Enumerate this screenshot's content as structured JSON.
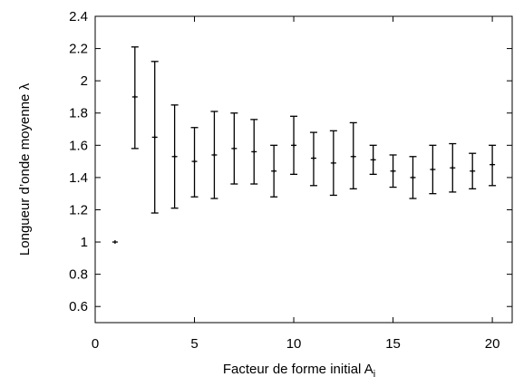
{
  "chart_data": {
    "type": "scatter",
    "xlabel": "Facteur de forme initial A",
    "xlabel_subscript": "i",
    "ylabel": "Longueur d’onde moyenne λ",
    "xlim": [
      0,
      21
    ],
    "ylim": [
      0.5,
      2.4
    ],
    "xticks": [
      0,
      5,
      10,
      15,
      20
    ],
    "xtick_labels": [
      "0",
      "5",
      "10",
      "15",
      "20"
    ],
    "yticks": [
      0.6,
      0.8,
      1,
      1.2,
      1.4,
      1.6,
      1.8,
      2,
      2.2,
      2.4
    ],
    "ytick_labels": [
      "0.6",
      "0.8",
      "1",
      "1.2",
      "1.4",
      "1.6",
      "1.8",
      "2",
      "2.2",
      "2.4"
    ],
    "grid": false,
    "series": [
      {
        "marker": "plus",
        "error_bars": true,
        "points": [
          {
            "x": 1,
            "y": 1.0,
            "ymin": 1.0,
            "ymax": 1.0
          },
          {
            "x": 2,
            "y": 1.9,
            "ymin": 1.58,
            "ymax": 2.21
          },
          {
            "x": 3,
            "y": 1.65,
            "ymin": 1.18,
            "ymax": 2.12
          },
          {
            "x": 4,
            "y": 1.53,
            "ymin": 1.21,
            "ymax": 1.85
          },
          {
            "x": 5,
            "y": 1.5,
            "ymin": 1.28,
            "ymax": 1.71
          },
          {
            "x": 6,
            "y": 1.54,
            "ymin": 1.27,
            "ymax": 1.81
          },
          {
            "x": 7,
            "y": 1.58,
            "ymin": 1.36,
            "ymax": 1.8
          },
          {
            "x": 8,
            "y": 1.56,
            "ymin": 1.36,
            "ymax": 1.76
          },
          {
            "x": 9,
            "y": 1.44,
            "ymin": 1.28,
            "ymax": 1.6
          },
          {
            "x": 10,
            "y": 1.6,
            "ymin": 1.42,
            "ymax": 1.78
          },
          {
            "x": 11,
            "y": 1.52,
            "ymin": 1.35,
            "ymax": 1.68
          },
          {
            "x": 12,
            "y": 1.49,
            "ymin": 1.29,
            "ymax": 1.69
          },
          {
            "x": 13,
            "y": 1.53,
            "ymin": 1.33,
            "ymax": 1.74
          },
          {
            "x": 14,
            "y": 1.51,
            "ymin": 1.42,
            "ymax": 1.6
          },
          {
            "x": 15,
            "y": 1.44,
            "ymin": 1.34,
            "ymax": 1.54
          },
          {
            "x": 16,
            "y": 1.4,
            "ymin": 1.27,
            "ymax": 1.53
          },
          {
            "x": 17,
            "y": 1.45,
            "ymin": 1.3,
            "ymax": 1.6
          },
          {
            "x": 18,
            "y": 1.46,
            "ymin": 1.31,
            "ymax": 1.61
          },
          {
            "x": 19,
            "y": 1.44,
            "ymin": 1.33,
            "ymax": 1.55
          },
          {
            "x": 20,
            "y": 1.48,
            "ymin": 1.35,
            "ymax": 1.6
          }
        ]
      }
    ],
    "colors": {
      "marks": "#000000",
      "axes": "#000000",
      "background": "#ffffff"
    }
  }
}
